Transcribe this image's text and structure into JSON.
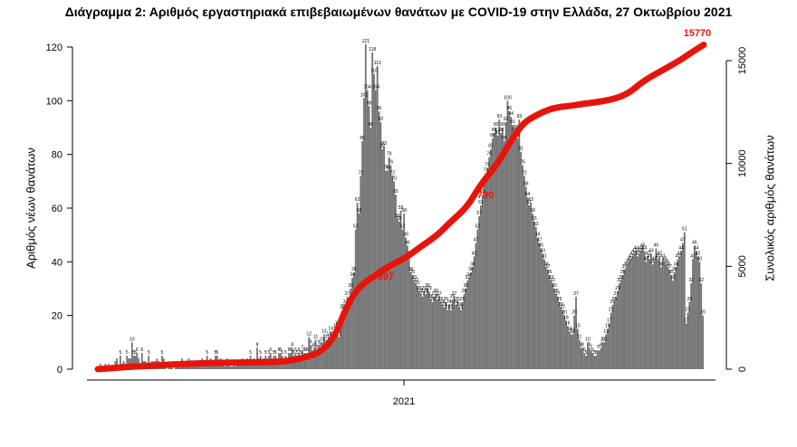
{
  "chart_data": {
    "type": "bar",
    "title": "Διάγραμμα 2: Αριθμός εργαστηριακά επιβεβαιωμένων θανάτων με COVID-19 στην Ελλάδα, 27 Οκτωβρίου 2021",
    "ylabel_left": "Αριθμός νέων θανάτων",
    "ylabel_right": "Συνολικός αριθμός θανάτων",
    "x_tick_labels": [
      "2021"
    ],
    "y_left_ticks": [
      "0",
      "20",
      "40",
      "60",
      "80",
      "100",
      "120"
    ],
    "y_right_ticks": [
      "0",
      "5000",
      "10000",
      "15000"
    ],
    "ylim_left": [
      0,
      124
    ],
    "ylim_right": [
      0,
      16000
    ],
    "series": [
      {
        "kind": "bar",
        "color": "#757575",
        "values": [
          0,
          2,
          0,
          0,
          2,
          0,
          2,
          0,
          0,
          1,
          3,
          4,
          0,
          5,
          2,
          3,
          2,
          5,
          4,
          4,
          10,
          5,
          5,
          6,
          4,
          2,
          6,
          3,
          3,
          2,
          5,
          2,
          3,
          3,
          3,
          4,
          3,
          2,
          5,
          4,
          2,
          0,
          3,
          1,
          2,
          0,
          3,
          2,
          2,
          1,
          4,
          3,
          2,
          2,
          4,
          3,
          3,
          2,
          3,
          3,
          3,
          2,
          4,
          3,
          3,
          5,
          2,
          4,
          2,
          2,
          5,
          5,
          3,
          4,
          3,
          2,
          1,
          4,
          2,
          1,
          1,
          3,
          1,
          3,
          3,
          2,
          4,
          2,
          3,
          4,
          3,
          5,
          3,
          4,
          2,
          8,
          4,
          5,
          3,
          4,
          5,
          4,
          5,
          6,
          4,
          5,
          5,
          4,
          6,
          6,
          5,
          4,
          5,
          4,
          6,
          6,
          8,
          5,
          6,
          5,
          6,
          5,
          7,
          6,
          6,
          6,
          12,
          9,
          7,
          8,
          11,
          7,
          9,
          8,
          10,
          13,
          9,
          11,
          12,
          14,
          10,
          12,
          15,
          16,
          12,
          17,
          22,
          22,
          24,
          27,
          24,
          30,
          34,
          36,
          52,
          62,
          58,
          72,
          85,
          101,
          121,
          104,
          98,
          90,
          118,
          110,
          104,
          113,
          96,
          92,
          82,
          83,
          74,
          74,
          79,
          76,
          72,
          70,
          65,
          56,
          55,
          59,
          52,
          58,
          49,
          46,
          42,
          36,
          35,
          33,
          32,
          31,
          29,
          28,
          27,
          29,
          28,
          30,
          29,
          26,
          25,
          27,
          28,
          26,
          27,
          25,
          24,
          23,
          25,
          22,
          24,
          22,
          26,
          27,
          24,
          25,
          23,
          22,
          25,
          28,
          30,
          33,
          34,
          36,
          38,
          42,
          47,
          52,
          57,
          61,
          65,
          69,
          73,
          75,
          79,
          82,
          86,
          88,
          90,
          87,
          93,
          88,
          90,
          85,
          92,
          100,
          96,
          94,
          91,
          88,
          89,
          86,
          93,
          81,
          76,
          72,
          68,
          64,
          61,
          62,
          58,
          55,
          53,
          49,
          47,
          45,
          43,
          41,
          38,
          37,
          35,
          33,
          32,
          30,
          28,
          27,
          25,
          23,
          22,
          20,
          18,
          16,
          14,
          13,
          13,
          20,
          27,
          15,
          11,
          8,
          8,
          6,
          5,
          10,
          8,
          7,
          6,
          5,
          5,
          7,
          7,
          8,
          10,
          10,
          13,
          15,
          17,
          21,
          24,
          25,
          27,
          29,
          32,
          33,
          35,
          37,
          38,
          39,
          40,
          41,
          42,
          43,
          44,
          42,
          43,
          44,
          45,
          44,
          40,
          42,
          41,
          43,
          39,
          40,
          45,
          41,
          42,
          38,
          41,
          40,
          39,
          38,
          37,
          35,
          33,
          36,
          38,
          41,
          42,
          44,
          47,
          51,
          17,
          21,
          25,
          32,
          41,
          46,
          44,
          42,
          40,
          32,
          20
        ]
      },
      {
        "kind": "line",
        "name": "cumulative",
        "color": "#e8140c",
        "x_fraction": [
          0,
          0.05,
          0.1,
          0.15,
          0.2,
          0.25,
          0.3,
          0.33,
          0.365,
          0.39,
          0.41,
          0.43,
          0.46,
          0.48,
          0.51,
          0.53,
          0.56,
          0.58,
          0.61,
          0.63,
          0.66,
          0.68,
          0.7,
          0.72,
          0.75,
          0.78,
          0.8,
          0.83,
          0.86,
          0.88,
          0.9,
          0.93,
          0.96,
          0.98,
          1.0
        ],
        "values": [
          0,
          110,
          190,
          270,
          310,
          330,
          350,
          480,
          760,
          1500,
          3000,
          4000,
          4600,
          5000,
          5450,
          5900,
          6500,
          7100,
          7900,
          8900,
          10000,
          11000,
          11900,
          12300,
          12700,
          12800,
          12900,
          13000,
          13200,
          13500,
          14000,
          14500,
          15000,
          15400,
          15770
        ]
      }
    ],
    "annotations": [
      "397",
      "790",
      "15770"
    ],
    "peak_labels": [
      "10",
      "121",
      "118",
      "100",
      "93"
    ]
  }
}
